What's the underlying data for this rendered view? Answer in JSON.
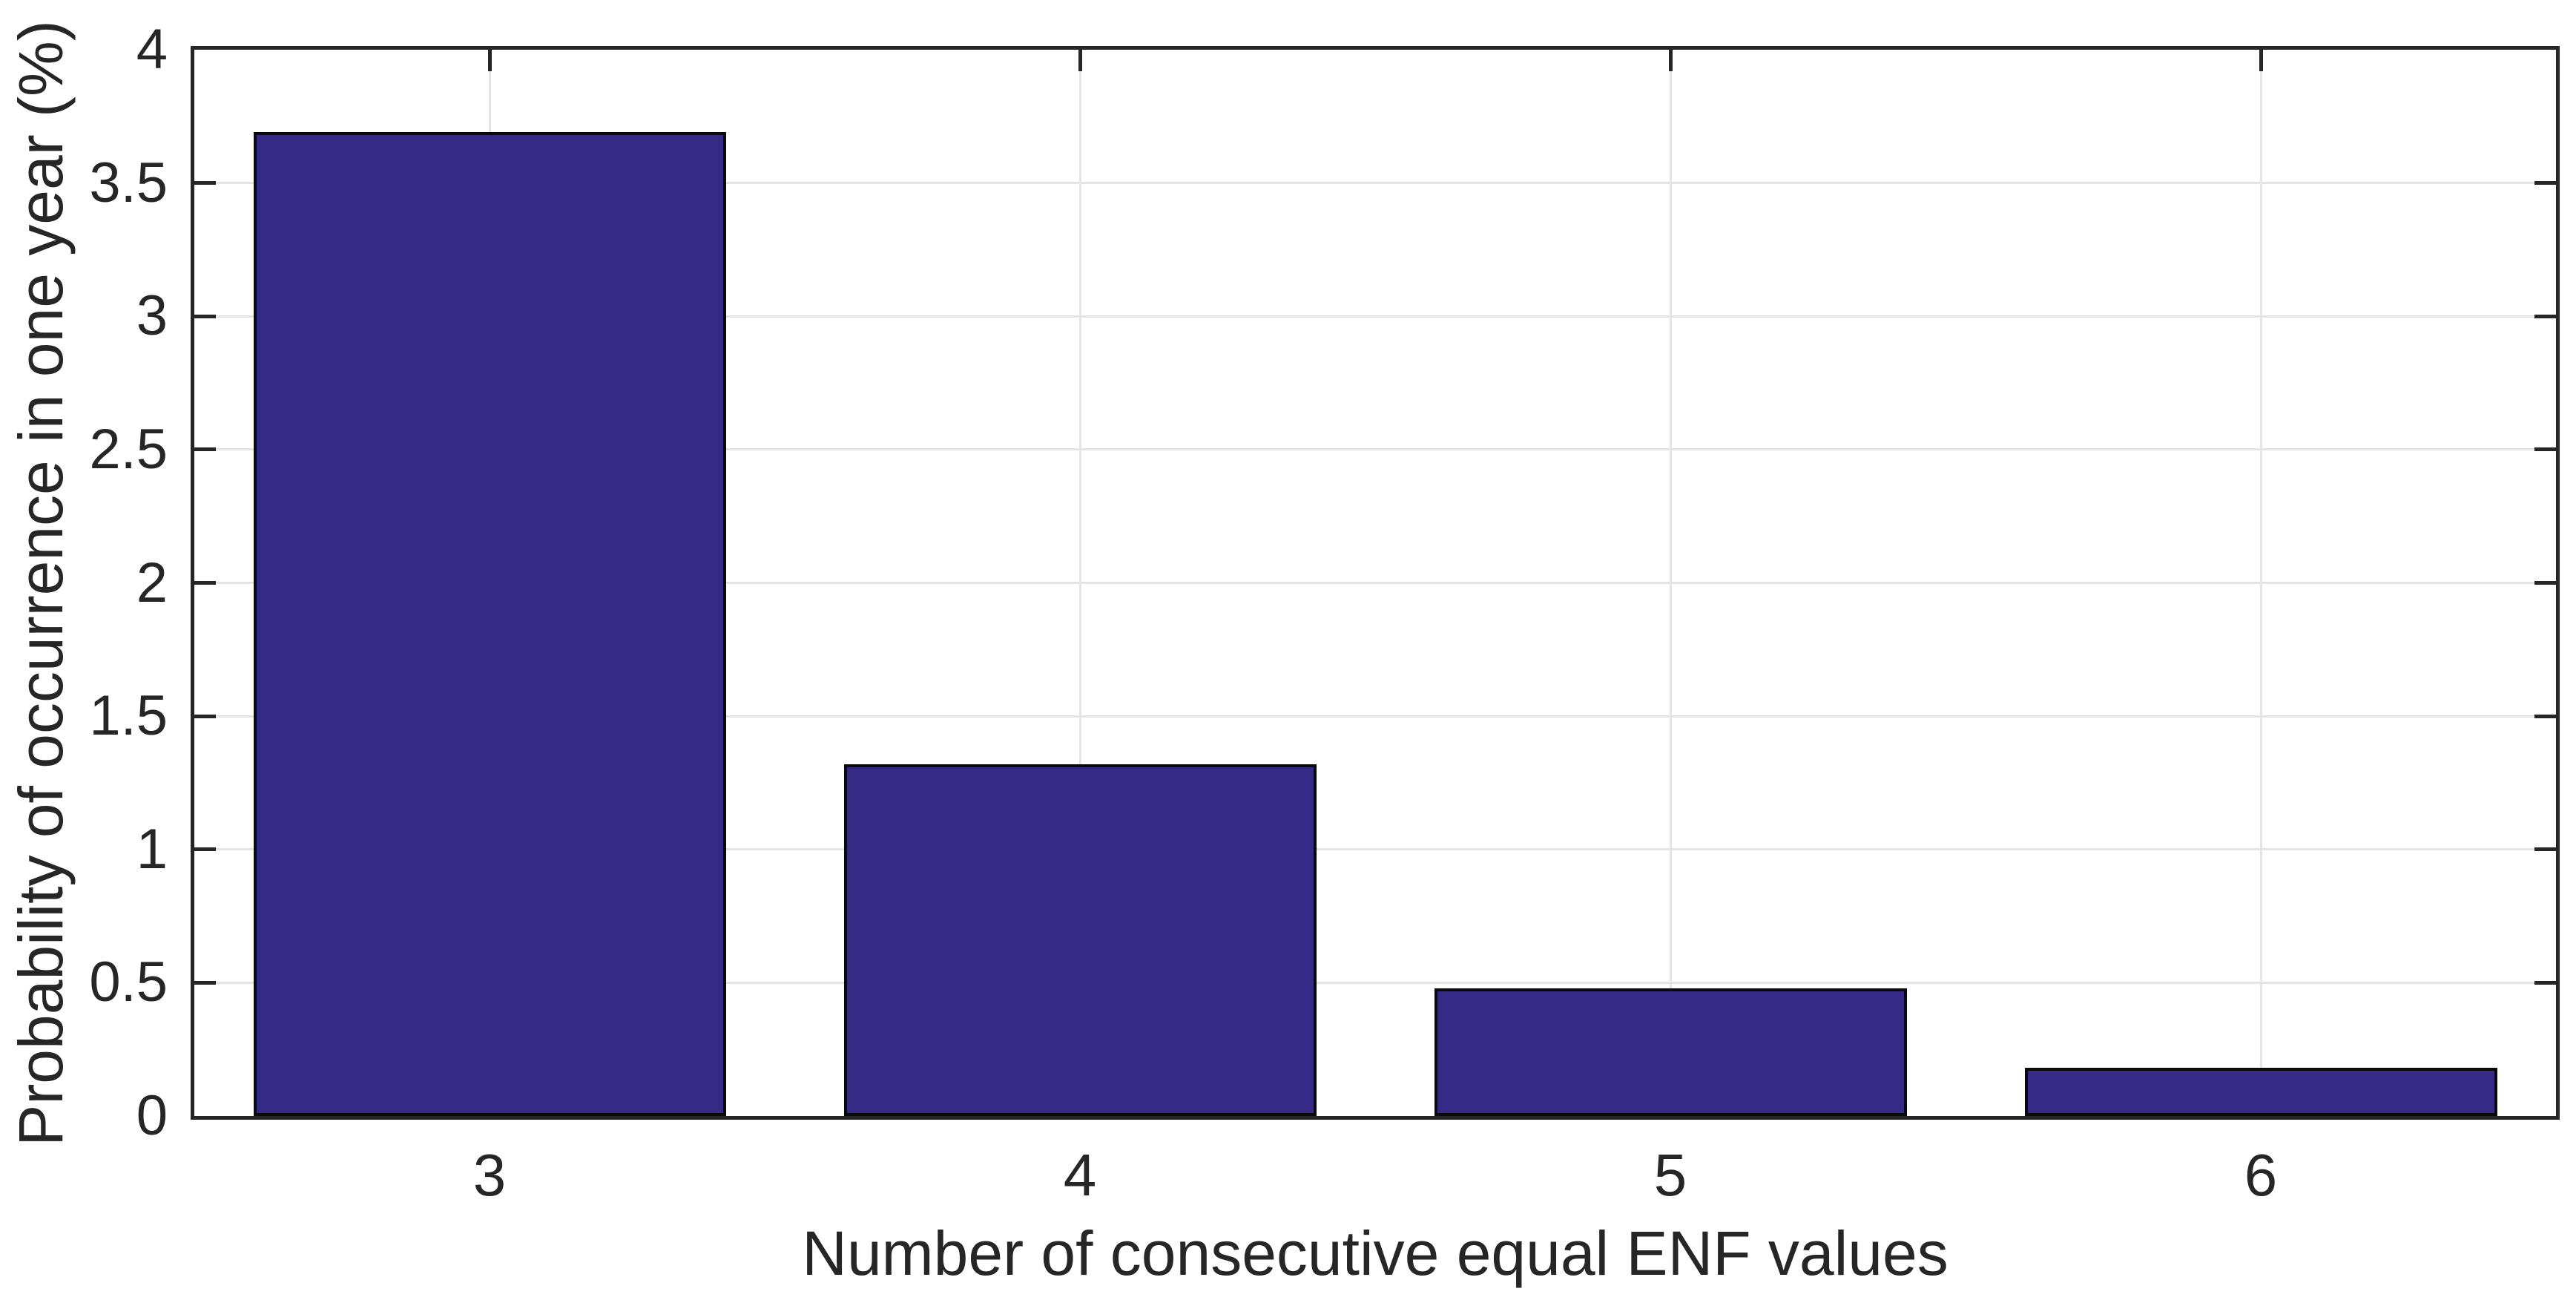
{
  "chart_data": {
    "type": "bar",
    "title": "",
    "categories": [
      "3",
      "4",
      "5",
      "6"
    ],
    "values": [
      3.69,
      1.32,
      0.48,
      0.18
    ],
    "xlabel": "Number of consecutive equal ENF values",
    "ylabel": "Probability of occurrence in one year (%)",
    "xlim_categories": [
      2.5,
      6.5
    ],
    "ylim": [
      0,
      4
    ],
    "yticks": [
      0,
      0.5,
      1,
      1.5,
      2,
      2.5,
      3,
      3.5,
      4
    ],
    "ytick_labels": [
      "0",
      "0.5",
      "1",
      "1.5",
      "2",
      "2.5",
      "3",
      "3.5",
      "4"
    ],
    "grid": true,
    "legend": null,
    "bar_width_fraction": 0.8,
    "colors": {
      "bar_fill": "#352B87",
      "bar_edge": "#0A0A0A",
      "axis": "#262626",
      "grid": "#E5E5E5",
      "text": "#262626",
      "background": "#FFFFFF"
    }
  }
}
